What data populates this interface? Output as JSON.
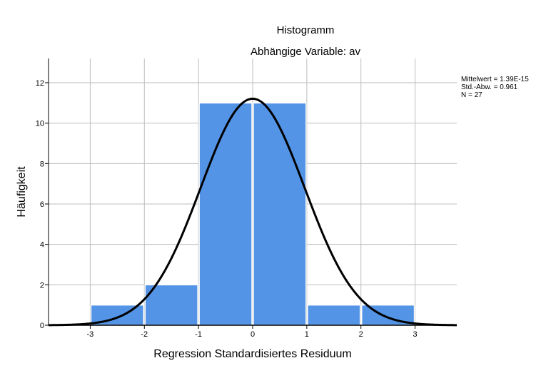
{
  "chart_data": {
    "type": "bar",
    "subtype": "histogram",
    "title": "Histogramm",
    "subtitle": "Abhängige Variable: av",
    "xlabel": "Regression Standardisiertes Residuum",
    "ylabel": "Häufigkeit",
    "xlim": [
      -3.77,
      3.77
    ],
    "ylim": [
      0,
      13.2
    ],
    "x_ticks": [
      "-3",
      "-2",
      "-1",
      "0",
      "1",
      "2",
      "3"
    ],
    "y_ticks": [
      "0",
      "2",
      "4",
      "6",
      "8",
      "10",
      "12"
    ],
    "bins": [
      {
        "from": -3,
        "to": -2,
        "count": 1
      },
      {
        "from": -2,
        "to": -1,
        "count": 2
      },
      {
        "from": -1,
        "to": 0,
        "count": 11
      },
      {
        "from": 0,
        "to": 1,
        "count": 11
      },
      {
        "from": 1,
        "to": 2,
        "count": 1
      },
      {
        "from": 2,
        "to": 3,
        "count": 1
      }
    ],
    "normal_curve": {
      "mean": 1.39e-15,
      "sd": 0.961,
      "n": 27,
      "bin_width": 1
    },
    "stats_box": [
      "Mittelwert = 1.39E-15",
      "Std.-Abw. = 0.961",
      "N = 27"
    ],
    "grid": true,
    "legend_position": "top-right",
    "colors": {
      "bar": "#5494e6",
      "bar_border": "#ffffff",
      "curve": "#000000",
      "grid": "#bdbdbd",
      "axis": "#000000"
    }
  }
}
